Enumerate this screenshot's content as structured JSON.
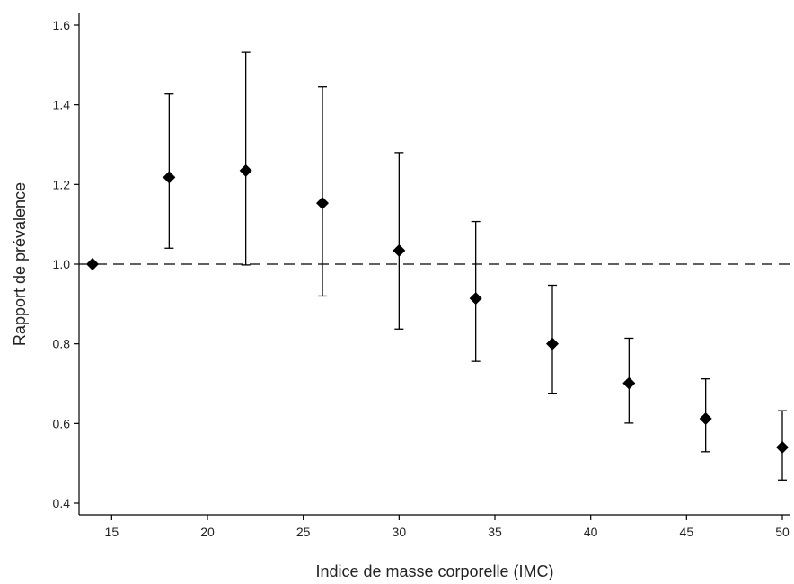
{
  "chart_data": {
    "type": "scatter",
    "xlabel": "Indice de masse corporelle (IMC)",
    "ylabel": "Rapport de prévalence",
    "xlim": [
      14,
      50
    ],
    "ylim": [
      0.4,
      1.6
    ],
    "xticks": [
      15,
      20,
      25,
      30,
      35,
      40,
      45,
      50
    ],
    "yticks": [
      0.4,
      0.6,
      0.8,
      1.0,
      1.2,
      1.4,
      1.6
    ],
    "xtick_labels": [
      "15",
      "20",
      "25",
      "30",
      "35",
      "40",
      "45",
      "50"
    ],
    "ytick_labels": [
      "0.4",
      "0.6",
      "0.8",
      "1.0",
      "1.2",
      "1.4",
      "1.6"
    ],
    "reference_line": 1.0,
    "points": [
      {
        "x": 14,
        "y": 1.0,
        "lower": 1.0,
        "upper": 1.0
      },
      {
        "x": 18,
        "y": 1.218,
        "lower": 1.04,
        "upper": 1.427
      },
      {
        "x": 22,
        "y": 1.235,
        "lower": 0.998,
        "upper": 1.532
      },
      {
        "x": 26,
        "y": 1.153,
        "lower": 0.92,
        "upper": 1.445
      },
      {
        "x": 30,
        "y": 1.034,
        "lower": 0.837,
        "upper": 1.28
      },
      {
        "x": 34,
        "y": 0.914,
        "lower": 0.756,
        "upper": 1.107
      },
      {
        "x": 38,
        "y": 0.8,
        "lower": 0.676,
        "upper": 0.947
      },
      {
        "x": 42,
        "y": 0.701,
        "lower": 0.601,
        "upper": 0.814
      },
      {
        "x": 46,
        "y": 0.612,
        "lower": 0.529,
        "upper": 0.712
      },
      {
        "x": 50,
        "y": 0.54,
        "lower": 0.458,
        "upper": 0.632
      }
    ],
    "grid": false,
    "marker": "diamond",
    "color": "#000000"
  }
}
